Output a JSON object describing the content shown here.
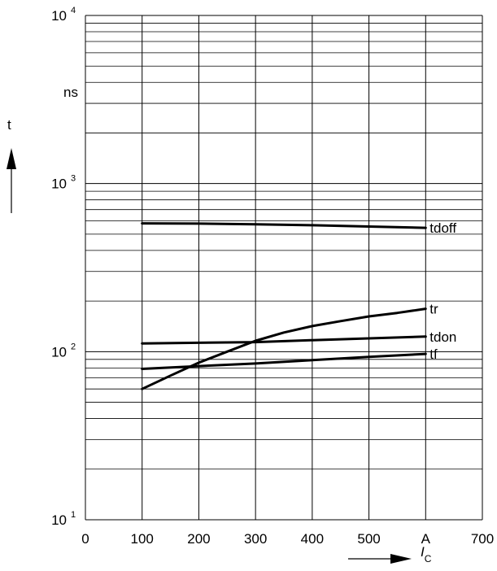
{
  "chart_data": {
    "type": "line",
    "title": "",
    "y_scale": "log",
    "grid": true,
    "xlim": [
      0,
      700
    ],
    "ylim": [
      10,
      10000
    ],
    "x_ticks": [
      {
        "value": 0,
        "label": "0"
      },
      {
        "value": 100,
        "label": "100"
      },
      {
        "value": 200,
        "label": "200"
      },
      {
        "value": 300,
        "label": "300"
      },
      {
        "value": 400,
        "label": "400"
      },
      {
        "value": 500,
        "label": "500"
      },
      {
        "value": 600,
        "label": "A"
      },
      {
        "value": 700,
        "label": "700"
      }
    ],
    "y_ticks": [
      {
        "value": 10,
        "base": "10",
        "exp": "1"
      },
      {
        "value": 100,
        "base": "10",
        "exp": "2"
      },
      {
        "value": 1000,
        "base": "10",
        "exp": "3"
      },
      {
        "value": 10000,
        "base": "10",
        "exp": "4"
      }
    ],
    "y_unit": "ns",
    "ylabel": "t",
    "xlabel_main": "I",
    "xlabel_sub": "C",
    "series": [
      {
        "name": "tdoff",
        "x": [
          100,
          200,
          300,
          400,
          500,
          600
        ],
        "y": [
          580,
          578,
          572,
          565,
          555,
          545
        ]
      },
      {
        "name": "tr",
        "x": [
          100,
          150,
          200,
          250,
          300,
          350,
          400,
          450,
          500,
          550,
          600
        ],
        "y": [
          60,
          72,
          86,
          100,
          116,
          130,
          142,
          152,
          162,
          170,
          180
        ]
      },
      {
        "name": "tdon",
        "x": [
          100,
          200,
          300,
          400,
          500,
          600
        ],
        "y": [
          112,
          113,
          114,
          117,
          120,
          123
        ]
      },
      {
        "name": "tf",
        "x": [
          100,
          200,
          300,
          400,
          500,
          600
        ],
        "y": [
          79,
          82,
          85,
          89,
          93,
          97
        ]
      }
    ]
  }
}
